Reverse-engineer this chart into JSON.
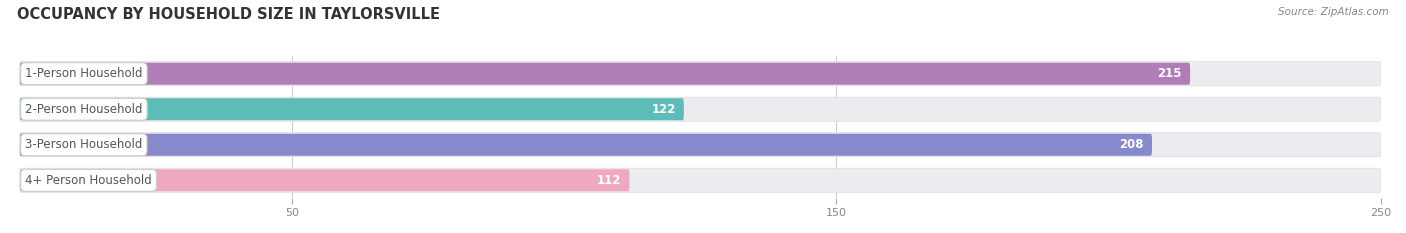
{
  "title": "OCCUPANCY BY HOUSEHOLD SIZE IN TAYLORSVILLE",
  "source": "Source: ZipAtlas.com",
  "categories": [
    "1-Person Household",
    "2-Person Household",
    "3-Person Household",
    "4+ Person Household"
  ],
  "values": [
    215,
    122,
    208,
    112
  ],
  "bar_colors": [
    "#b07db8",
    "#5dbcb8",
    "#8888cc",
    "#f0a8c0"
  ],
  "xlim": [
    0,
    250
  ],
  "xticks": [
    50,
    150,
    250
  ],
  "background_color": "#ffffff",
  "bar_bg_color": "#ebebf0",
  "row_bg_color": "#f5f5f8",
  "title_fontsize": 10.5,
  "bar_height": 0.62,
  "value_fontsize": 8.5,
  "label_fontsize": 8.5
}
